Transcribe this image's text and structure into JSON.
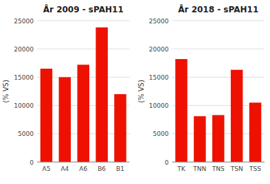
{
  "chart_data": [
    {
      "type": "bar",
      "title": "År 2009 - sPAH11",
      "ylabel": "(% VS)",
      "categories": [
        "A5",
        "A4",
        "A6",
        "B6",
        "B1"
      ],
      "values": [
        16500,
        15000,
        17200,
        23800,
        12000
      ],
      "color": "#EE1100",
      "ylim": [
        0,
        25000
      ],
      "yticks": [
        0,
        5000,
        10000,
        15000,
        20000,
        25000
      ],
      "grid": true
    },
    {
      "type": "bar",
      "title": "År 2018 - sPAH11",
      "ylabel": "(% VS)",
      "categories": [
        "TK",
        "TNN",
        "TNS",
        "TSN",
        "TSS"
      ],
      "values": [
        18200,
        8100,
        8300,
        16300,
        10500
      ],
      "color": "#EE1100",
      "ylim": [
        0,
        25000
      ],
      "yticks": [
        0,
        5000,
        10000,
        15000,
        20000,
        25000
      ],
      "grid": true
    }
  ]
}
